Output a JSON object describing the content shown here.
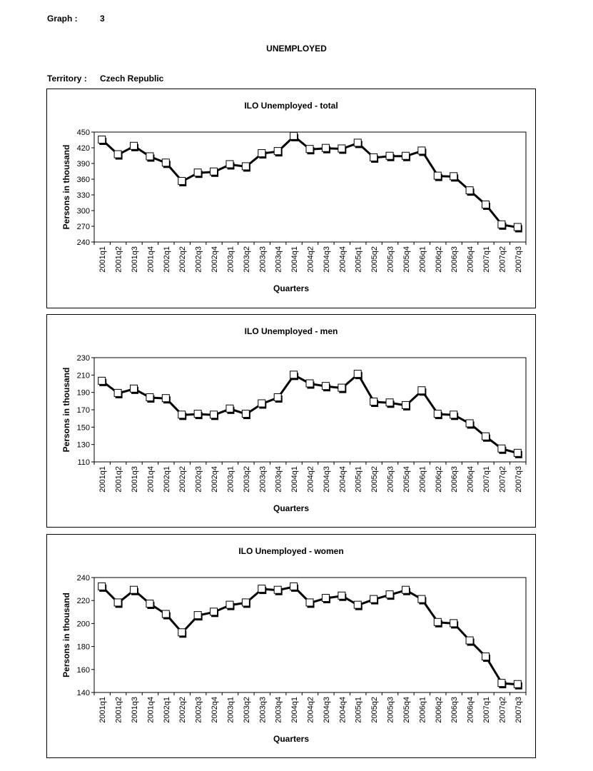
{
  "header": {
    "graph_label": "Graph :",
    "graph_number": "3",
    "title": "UNEMPLOYED",
    "territory_label": "Territory :",
    "territory": "Czech Republic"
  },
  "chart_data": [
    {
      "type": "line",
      "title": "ILO Unemployed - total",
      "xlabel": "Quarters",
      "ylabel": "Persons in thousand",
      "ylim": [
        240,
        450
      ],
      "yticks": [
        240,
        270,
        300,
        330,
        360,
        390,
        420,
        450
      ],
      "categories": [
        "2001q1",
        "2001q2",
        "2001q3",
        "2001q4",
        "2002q1",
        "2002q2",
        "2002q3",
        "2002q4",
        "2003q1",
        "2003q2",
        "2003q3",
        "2003q4",
        "2004q1",
        "2004q2",
        "2004q3",
        "2004q4",
        "2005q1",
        "2005q2",
        "2005q3",
        "2005q4",
        "2006q1",
        "2006q2",
        "2006q3",
        "2006q4",
        "2007q1",
        "2007q2",
        "2007q3"
      ],
      "values": [
        435,
        407,
        423,
        403,
        391,
        356,
        372,
        374,
        388,
        384,
        409,
        413,
        442,
        417,
        419,
        418,
        429,
        401,
        404,
        404,
        414,
        366,
        365,
        338,
        311,
        273,
        268
      ]
    },
    {
      "type": "line",
      "title": "ILO Unemployed - men",
      "xlabel": "Quarters",
      "ylabel": "Persons in thousand",
      "ylim": [
        110,
        230
      ],
      "yticks": [
        110,
        130,
        150,
        170,
        190,
        210,
        230
      ],
      "categories": [
        "2001q1",
        "2001q2",
        "2001q3",
        "2001q4",
        "2002q1",
        "2002q2",
        "2002q3",
        "2002q4",
        "2003q1",
        "2003q2",
        "2003q3",
        "2003q4",
        "2004q1",
        "2004q2",
        "2004q3",
        "2004q4",
        "2005q1",
        "2005q2",
        "2005q3",
        "2005q4",
        "2006q1",
        "2006q2",
        "2006q3",
        "2006q4",
        "2007q1",
        "2007q2",
        "2007q3"
      ],
      "values": [
        203,
        189,
        194,
        184,
        183,
        164,
        165,
        164,
        171,
        165,
        177,
        184,
        210,
        200,
        197,
        195,
        211,
        179,
        178,
        175,
        192,
        165,
        164,
        154,
        139,
        125,
        120
      ]
    },
    {
      "type": "line",
      "title": "ILO Unemployed - women",
      "xlabel": "Quarters",
      "ylabel": "Persons in thousand",
      "ylim": [
        140,
        240
      ],
      "yticks": [
        140,
        160,
        180,
        200,
        220,
        240
      ],
      "categories": [
        "2001q1",
        "2001q2",
        "2001q3",
        "2001q4",
        "2002q1",
        "2002q2",
        "2002q3",
        "2002q4",
        "2003q1",
        "2003q2",
        "2003q3",
        "2003q4",
        "2004q1",
        "2004q2",
        "2004q3",
        "2004q4",
        "2005q1",
        "2005q2",
        "2005q3",
        "2005q4",
        "2006q1",
        "2006q2",
        "2006q3",
        "2006q4",
        "2007q1",
        "2007q2",
        "2007q3"
      ],
      "values": [
        232,
        218,
        229,
        217,
        208,
        192,
        207,
        210,
        216,
        218,
        230,
        229,
        232,
        218,
        222,
        224,
        216,
        221,
        225,
        229,
        221,
        201,
        200,
        185,
        171,
        148,
        147
      ]
    }
  ]
}
